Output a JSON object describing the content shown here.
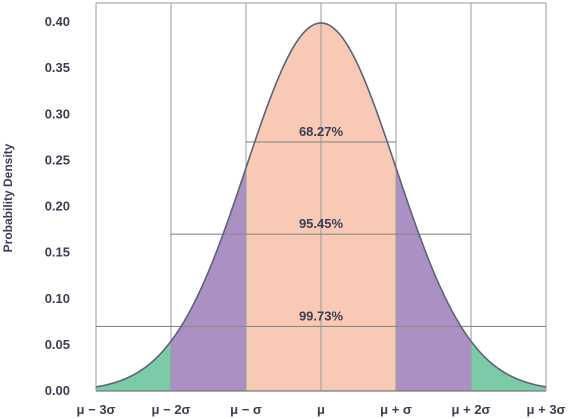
{
  "chart_data": {
    "type": "area",
    "title": "",
    "xlabel": "",
    "ylabel": "Probability Density",
    "mu": 0,
    "sigma": 1,
    "xlim": [
      -3,
      3
    ],
    "ylim": [
      0,
      0.4
    ],
    "x_ticks": [
      -3,
      -2,
      -1,
      0,
      1,
      2,
      3
    ],
    "x_tick_labels": [
      "μ − 3σ",
      "μ − 2σ",
      "μ − σ",
      "μ",
      "μ + σ",
      "μ + 2σ",
      "μ + 3σ"
    ],
    "y_ticks": [
      0,
      0.05,
      0.1,
      0.15,
      0.2,
      0.25,
      0.3,
      0.35,
      0.4
    ],
    "y_tick_labels": [
      "0.00",
      "0.05",
      "0.10",
      "0.15",
      "0.20",
      "0.25",
      "0.30",
      "0.35",
      "0.40"
    ],
    "grid": "vertical",
    "curve_color": "#5e6475",
    "bands": [
      {
        "from": -1,
        "to": 1,
        "color": "#f8c9b4"
      },
      {
        "from": -2,
        "to": -1,
        "color": "#ab90c4"
      },
      {
        "from": 1,
        "to": 2,
        "color": "#ab90c4"
      },
      {
        "from": -3,
        "to": -2,
        "color": "#7ccaa6"
      },
      {
        "from": 2,
        "to": 3,
        "color": "#7ccaa6"
      }
    ],
    "intervals": [
      {
        "label": "68.27%",
        "from": -1,
        "to": 1,
        "y": 0.27
      },
      {
        "label": "95.45%",
        "from": -2,
        "to": 2,
        "y": 0.17
      },
      {
        "label": "99.73%",
        "from": -3,
        "to": 3,
        "y": 0.07
      }
    ]
  }
}
